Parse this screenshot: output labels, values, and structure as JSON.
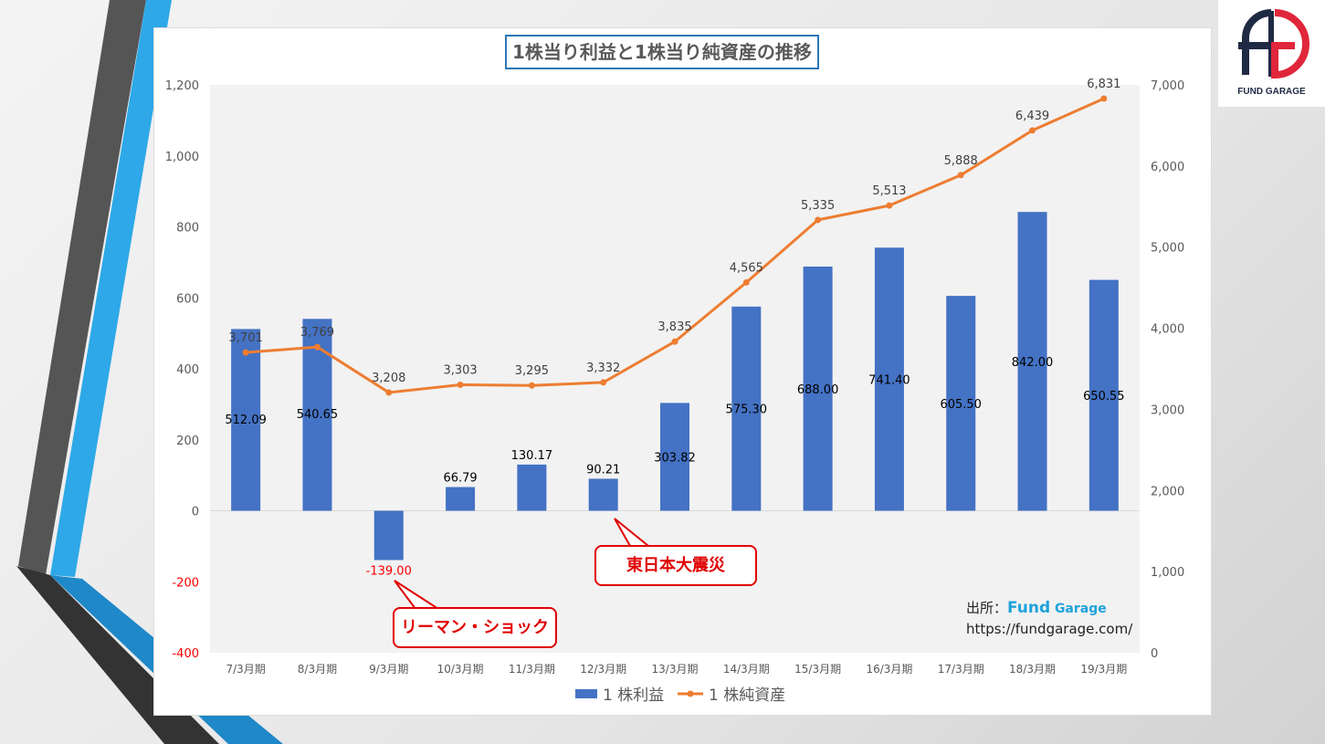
{
  "logo": {
    "text": "FUND GARAGE",
    "colors": {
      "navy": "#1f2a44",
      "red": "#e0263a"
    }
  },
  "source": {
    "prefix": "出所：",
    "brand_main": "Fund",
    "brand_sub": "Garage",
    "url": "https://fundgarage.com/"
  },
  "annotations": {
    "lehman": "リーマン・ショック",
    "earthquake": "東日本大震災"
  },
  "chart_data": {
    "type": "bar+line",
    "title": "1株当り利益と1株当り純資産の推移",
    "categories": [
      "7/3月期",
      "8/3月期",
      "9/3月期",
      "10/3月期",
      "11/3月期",
      "12/3月期",
      "13/3月期",
      "14/3月期",
      "15/3月期",
      "16/3月期",
      "17/3月期",
      "18/3月期",
      "19/3月期"
    ],
    "series": [
      {
        "name": "1株利益",
        "type": "bar",
        "axis": "left",
        "color": "#4472c4",
        "values": [
          512.09,
          540.65,
          -139.0,
          66.79,
          130.17,
          90.21,
          303.82,
          575.3,
          688.0,
          741.4,
          605.5,
          842.0,
          650.55
        ],
        "labels": [
          "512.09",
          "540.65",
          "-139.00",
          "66.79",
          "130.17",
          "90.21",
          "303.82",
          "575.30",
          "688.00",
          "741.40",
          "605.50",
          "842.00",
          "650.55"
        ]
      },
      {
        "name": "1株純資産",
        "type": "line",
        "axis": "right",
        "color": "#ed7d31",
        "values": [
          3701,
          3769,
          3208,
          3303,
          3295,
          3332,
          3835,
          4565,
          5335,
          5513,
          5888,
          6439,
          6831
        ],
        "labels": [
          "3,701",
          "3,769",
          "3,208",
          "3,303",
          "3,295",
          "3,332",
          "3,835",
          "4,565",
          "5,335",
          "5,513",
          "5,888",
          "6,439",
          "6,831"
        ]
      }
    ],
    "y_left": {
      "min": -400,
      "max": 1200,
      "ticks": [
        "-400",
        "-200",
        "0",
        "200",
        "400",
        "600",
        "800",
        "1,000",
        "1,200"
      ],
      "negative_color": "#ff0000"
    },
    "y_right": {
      "min": 0,
      "max": 7000,
      "ticks": [
        "0",
        "1,000",
        "2,000",
        "3,000",
        "4,000",
        "5,000",
        "6,000",
        "7,000"
      ]
    },
    "legend": {
      "position": "bottom",
      "entries": [
        "1 株利益",
        "1 株純資産"
      ]
    },
    "grid": false
  }
}
